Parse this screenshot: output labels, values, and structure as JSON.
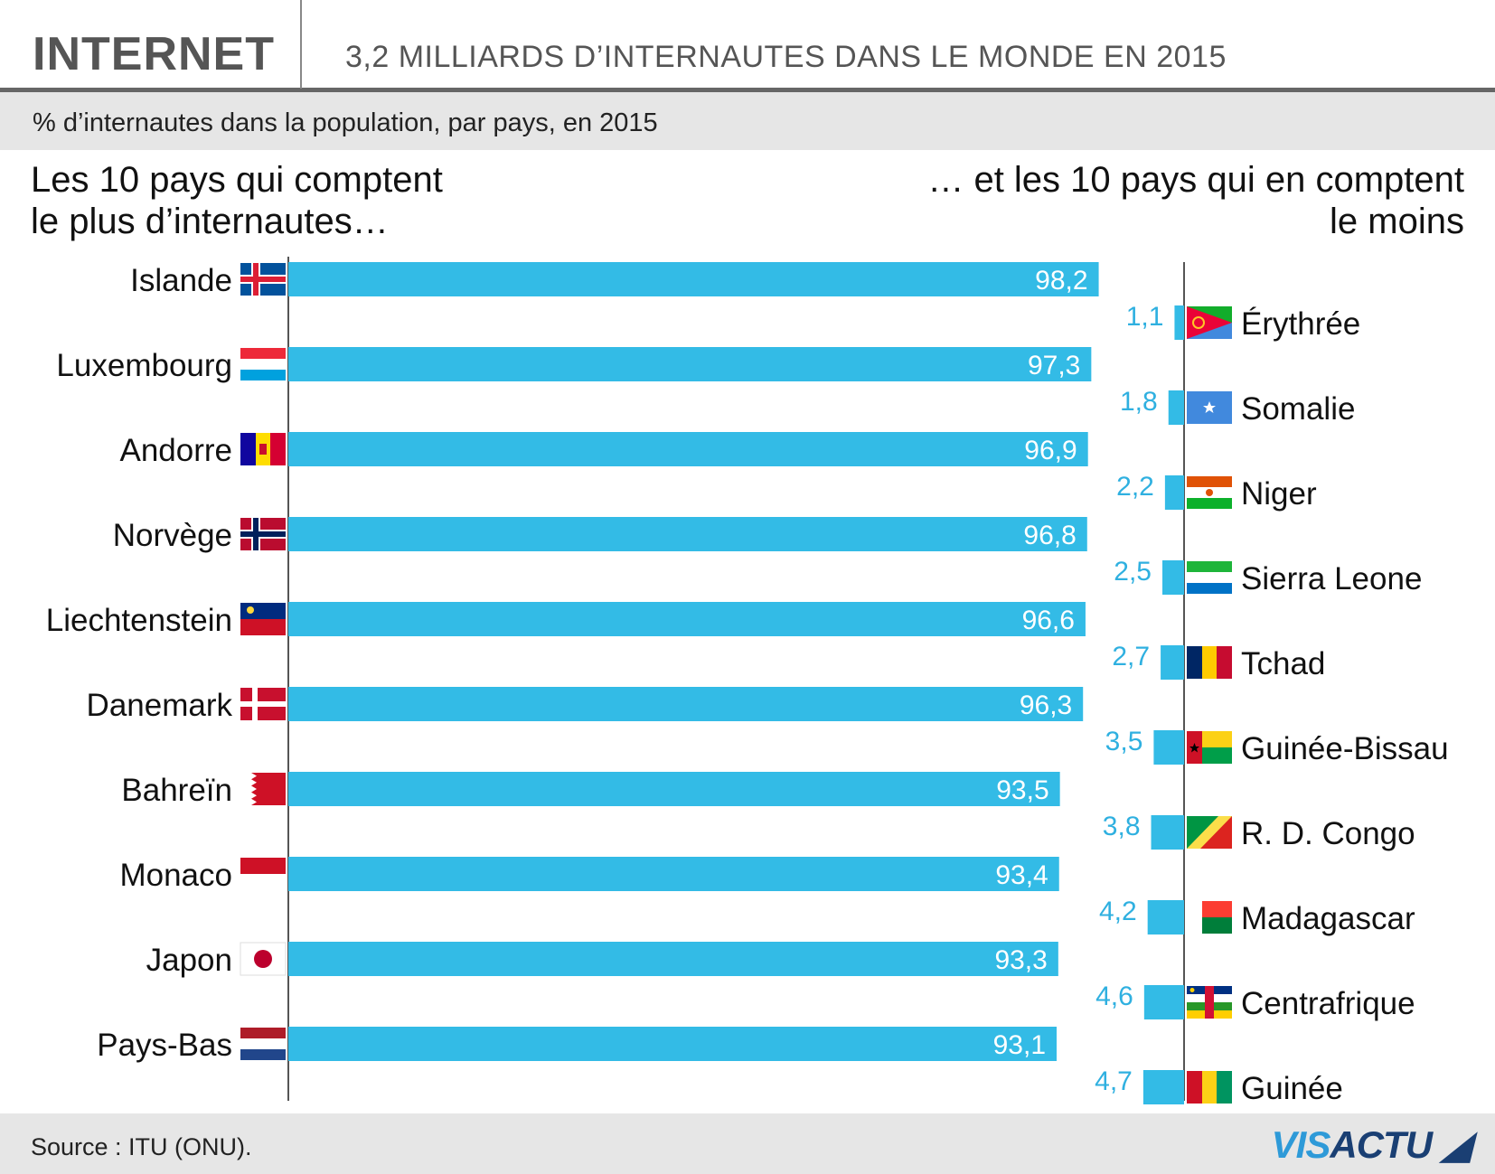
{
  "header": {
    "brand": "INTERNET",
    "title": "3,2 MILLIARDS D’INTERNAUTES DANS LE MONDE EN 2015"
  },
  "subtitle": "% d’internautes dans la population, par pays, en 2015",
  "left_title": {
    "line1": "Les 10 pays qui comptent",
    "line2": "le plus d’internautes…"
  },
  "right_title": {
    "line1": "… et les 10 pays qui en comptent",
    "line2": "le moins"
  },
  "footer": {
    "source": "Source : ITU (ONU).",
    "logo_a": "VIS",
    "logo_b": "ACTU"
  },
  "colors": {
    "bar": "#33bbe6",
    "axis": "#555555",
    "value_out": "#2fb0e0",
    "value_in": "#ffffff"
  },
  "chart_data": [
    {
      "type": "bar",
      "orientation": "horizontal",
      "title": "Les 10 pays qui comptent le plus d’internautes…",
      "unit": "%",
      "xlim": [
        0,
        100
      ],
      "categories": [
        "Islande",
        "Luxembourg",
        "Andorre",
        "Norvège",
        "Liechtenstein",
        "Danemark",
        "Bahreïn",
        "Monaco",
        "Japon",
        "Pays-Bas"
      ],
      "values": [
        98.2,
        97.3,
        96.9,
        96.8,
        96.6,
        96.3,
        93.5,
        93.4,
        93.3,
        93.1
      ],
      "labels": [
        "98,2",
        "97,3",
        "96,9",
        "96,8",
        "96,6",
        "96,3",
        "93,5",
        "93,4",
        "93,3",
        "93,1"
      ],
      "flags": [
        "iceland-flag-icon",
        "luxembourg-flag-icon",
        "andorra-flag-icon",
        "norway-flag-icon",
        "liechtenstein-flag-icon",
        "denmark-flag-icon",
        "bahrain-flag-icon",
        "monaco-flag-icon",
        "japan-flag-icon",
        "netherlands-flag-icon"
      ]
    },
    {
      "type": "bar",
      "orientation": "horizontal",
      "direction": "right-to-left",
      "title": "… et les 10 pays qui en comptent le moins",
      "unit": "%",
      "categories": [
        "Érythrée",
        "Somalie",
        "Niger",
        "Sierra Leone",
        "Tchad",
        "Guinée-Bissau",
        "R. D. Congo",
        "Madagascar",
        "Centrafrique",
        "Guinée"
      ],
      "values": [
        1.1,
        1.8,
        2.2,
        2.5,
        2.7,
        3.5,
        3.8,
        4.2,
        4.6,
        4.7
      ],
      "labels": [
        "1,1",
        "1,8",
        "2,2",
        "2,5",
        "2,7",
        "3,5",
        "3,8",
        "4,2",
        "4,6",
        "4,7"
      ],
      "flags": [
        "eritrea-flag-icon",
        "somalia-flag-icon",
        "niger-flag-icon",
        "sierra-leone-flag-icon",
        "chad-flag-icon",
        "guinea-bissau-flag-icon",
        "dr-congo-flag-icon",
        "madagascar-flag-icon",
        "central-african-republic-flag-icon",
        "guinea-flag-icon"
      ]
    }
  ]
}
